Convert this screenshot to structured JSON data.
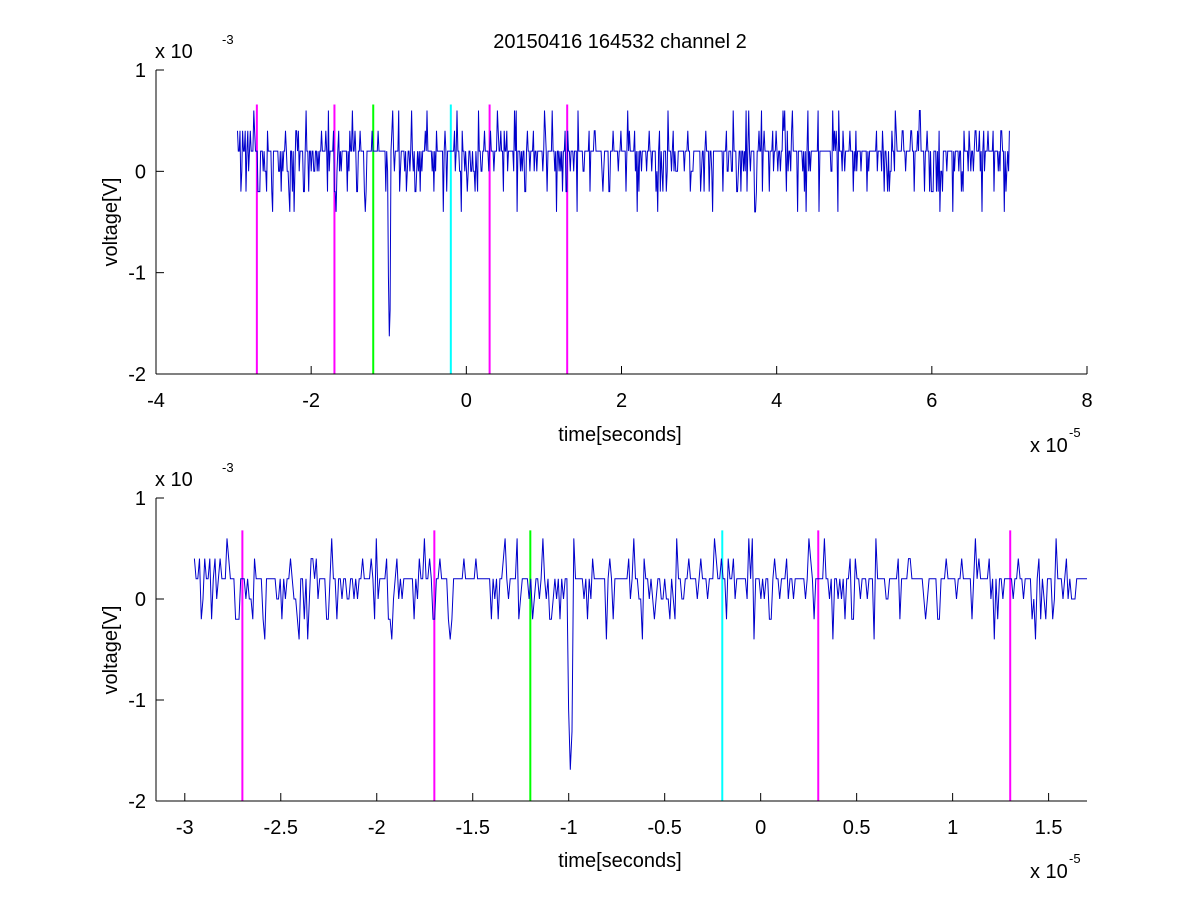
{
  "title": "20150416 164532 channel 2",
  "colors": {
    "signal": "#0000cc",
    "magenta": "#ff00ff",
    "green": "#00ff00",
    "cyan": "#00ffff"
  },
  "chart_data": [
    {
      "type": "line",
      "xlabel": "time[seconds]",
      "ylabel": "voltage[V]",
      "x_exponent": {
        "base": "x 10",
        "power": "-5"
      },
      "y_exponent": {
        "base": "x 10",
        "power": "-3"
      },
      "xlim": [
        -4e-05,
        8e-05
      ],
      "ylim": [
        -0.002,
        0.001
      ],
      "x_ticks": [
        -4e-05,
        -2e-05,
        0,
        2e-05,
        4e-05,
        6e-05,
        8e-05
      ],
      "x_tick_labels": [
        "-4",
        "-2",
        "0",
        "2",
        "4",
        "6",
        "8"
      ],
      "y_ticks": [
        -0.002,
        -0.001,
        0,
        0.001
      ],
      "y_tick_labels": [
        "-2",
        "-1",
        "0",
        "1"
      ],
      "signal": {
        "x_start": -2.95e-05,
        "x_end": 7e-05,
        "baseline": 0.0001,
        "step": 0.0002,
        "spike_x": -9.9e-06,
        "spike_min": -0.0018
      },
      "markers": [
        {
          "x": -2.7e-05,
          "color": "magenta"
        },
        {
          "x": -1.7e-05,
          "color": "magenta"
        },
        {
          "x": -1.2e-05,
          "color": "green"
        },
        {
          "x": -2e-06,
          "color": "cyan"
        },
        {
          "x": 3e-06,
          "color": "magenta"
        },
        {
          "x": 1.3e-05,
          "color": "magenta"
        }
      ],
      "marker_range": [
        -0.002,
        0.00066
      ]
    },
    {
      "type": "line",
      "xlabel": "time[seconds]",
      "ylabel": "voltage[V]",
      "x_exponent": {
        "base": "x 10",
        "power": "-5"
      },
      "y_exponent": {
        "base": "x 10",
        "power": "-3"
      },
      "xlim": [
        -3.15e-05,
        1.7e-05
      ],
      "ylim": [
        -0.002,
        0.001
      ],
      "x_ticks": [
        -3e-05,
        -2.5e-05,
        -2e-05,
        -1.5e-05,
        -1e-05,
        -5e-06,
        0,
        5e-06,
        1e-05,
        1.5e-05
      ],
      "x_tick_labels": [
        "-3",
        "-2.5",
        "-2",
        "-1.5",
        "-1",
        "-0.5",
        "0",
        "0.5",
        "1",
        "1.5"
      ],
      "y_ticks": [
        -0.002,
        -0.001,
        0,
        0.001
      ],
      "y_tick_labels": [
        "-2",
        "-1",
        "0",
        "1"
      ],
      "signal": {
        "x_start": -2.95e-05,
        "x_end": 1.7e-05,
        "baseline": 0.0001,
        "step": 0.0002,
        "spike_x": -9.9e-06,
        "spike_min": -0.0018
      },
      "markers": [
        {
          "x": -2.7e-05,
          "color": "magenta"
        },
        {
          "x": -1.7e-05,
          "color": "magenta"
        },
        {
          "x": -1.2e-05,
          "color": "green"
        },
        {
          "x": -2e-06,
          "color": "cyan"
        },
        {
          "x": 3e-06,
          "color": "magenta"
        },
        {
          "x": 1.3e-05,
          "color": "magenta"
        }
      ],
      "marker_range": [
        -0.002,
        0.00068
      ]
    }
  ]
}
